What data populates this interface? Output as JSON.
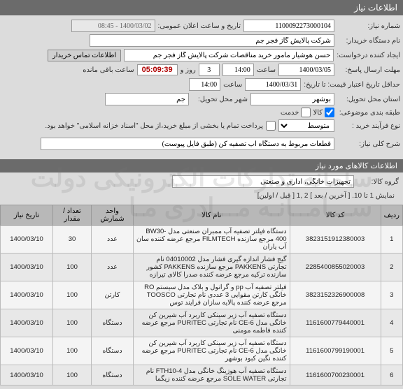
{
  "header": {
    "title": "اطلاعات نیاز"
  },
  "form": {
    "need_no_label": "شماره نیاز:",
    "need_no": "1100092273000104",
    "announce_label": "تاریخ و ساعت اعلان عمومی:",
    "announce_value": "1400/03/02 - 08:45",
    "buyer_org_label": "نام دستگاه خریدار:",
    "buyer_org": "شرکت پالایش گاز فجر جم",
    "creator_label": "ایجاد کننده درخواست:",
    "creator": "حسن هوشیار مامور خرید مناقصات شرکت پالایش گاز فجر جم",
    "contact_btn": "اطلاعات تماس خریدار",
    "deadline_label": "مهلت ارسال پاسخ:",
    "deadline_date": "1400/03/05",
    "time_label": "ساعت",
    "deadline_time": "14:00",
    "days_remain": "3",
    "days_label": "روز و",
    "countdown": "05:09:39",
    "remain_label": "ساعت باقی مانده",
    "validity_label": "حداقل تاریخ اعتبار قیمت: تا تاریخ:",
    "validity_date": "1400/03/31",
    "validity_time": "14:00",
    "delivery_prov_label": "استان محل تحویل:",
    "delivery_prov": "بوشهر",
    "delivery_city_label": "شهر محل تحویل:",
    "delivery_city": "جم",
    "cat_label": "طبقه بندی موضوعی:",
    "cat_goods": "کالا",
    "cat_service": "خدمت",
    "proc_type_label": "نوع فرآیند خرید :",
    "proc_type": "متوسط",
    "pay_note": "پرداخت تمام یا بخشی از مبلغ خرید،از محل \"اسناد خزانه اسلامی\" خواهد بود.",
    "need_desc_label": "شرح کلی نیاز:",
    "need_desc": "قطعات مربوط به دستگاه آب تصفیه کن (طبق فایل پیوست)"
  },
  "items_section": {
    "title": "اطلاعات کالاهای مورد نیاز",
    "group_label": "گروه کالا:",
    "group_value": "تجهیزات خانگی، اداری و صنعتی",
    "pager_text": "نمایش 1 تا 10. [ آخرین / بعد ] 2 ,1 [ قبل / اولین]"
  },
  "table": {
    "headers": {
      "idx": "ردیف",
      "code": "کد کالا",
      "name": "نام کالا",
      "unit": "واحد شمارش",
      "qty": "تعداد / مقدار",
      "date": "تاریخ نیاز"
    },
    "rows": [
      {
        "idx": "1",
        "code": "3823151912380003",
        "name": "دستگاه فیلتر تصفیه آب ممبران صنعتی مدل BW30-400 مرجع سازنده FILMTECH مرجع عرضه کننده سان آب یاران",
        "unit": "عدد",
        "qty": "30",
        "date": "1400/03/10"
      },
      {
        "idx": "2",
        "code": "2285400855020003",
        "name": "گیج فشار اندازه گیری فشار مدل 04010002 نام تجارتی PAKKENS مرجع سازنده PAKKENS کشور سازنده ترکیه مرجع عرضه کننده صدرا کالای تیرازه",
        "unit": "عدد",
        "qty": "100",
        "date": "1400/03/10"
      },
      {
        "idx": "3",
        "code": "3823152326900008",
        "name": "فیلتر تصفیه آب pp و گرانول و بلاک مدل سیستم RO خانگی کارتن مقوایی 3 عددی نام تجارتی TOOSCO مرجع عرضه کننده پالایه سازان فرایند توس",
        "unit": "کارتن",
        "qty": "100",
        "date": "1400/03/10"
      },
      {
        "idx": "4",
        "code": "1161600779440001",
        "name": "دستگاه تصفیه آب زیر سینکی کاربرد آب شیرین کن خانگی مدل CE-6 نام تجارتی PURITEC مرجع عرضه کننده فاطمه مومنی",
        "unit": "دستگاه",
        "qty": "100",
        "date": "1400/03/10"
      },
      {
        "idx": "5",
        "code": "1161600799190001",
        "name": "دستگاه تصفیه آب زیر سینکی کاربرد آب شیرین کن خانگی مدل CE-6 نام تجارتی PURITEC مرجع عرضه کننده نگین کبود بوشهر",
        "unit": "دستگاه",
        "qty": "100",
        "date": "1400/03/10"
      },
      {
        "idx": "6",
        "code": "1161600700230001",
        "name": "دستگاه تصفیه آب هوزینگ خانگی مدل FTH10-4 نام تجارتی SOLE WATER مرجع عرضه کننده زیگما",
        "unit": "دستگاه",
        "qty": "100",
        "date": "1400/03/10"
      }
    ]
  }
}
